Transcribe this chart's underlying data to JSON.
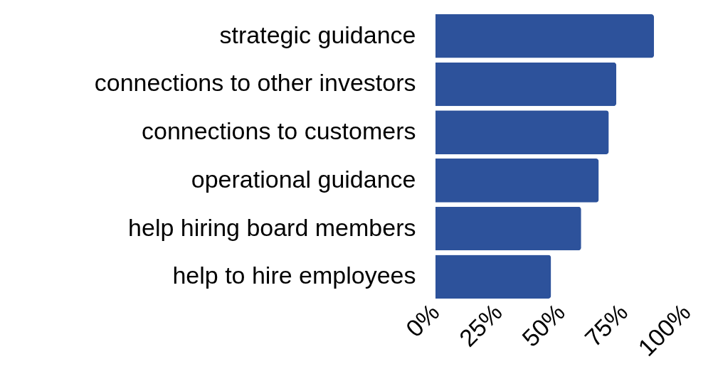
{
  "chart_data": {
    "type": "bar",
    "orientation": "horizontal",
    "categories": [
      "strategic guidance",
      "connections to other investors",
      "connections to customers",
      "operational guidance",
      "help hiring board members",
      "help to hire employees"
    ],
    "values": [
      87,
      72,
      69,
      65,
      58,
      46
    ],
    "color": "#2d529b",
    "xlim": [
      0,
      100
    ],
    "xticks": [
      {
        "value": 0,
        "label": "0%"
      },
      {
        "value": 25,
        "label": "25%"
      },
      {
        "value": 50,
        "label": "50%"
      },
      {
        "value": 75,
        "label": "75%"
      },
      {
        "value": 100,
        "label": "100%"
      }
    ],
    "grid": false
  }
}
